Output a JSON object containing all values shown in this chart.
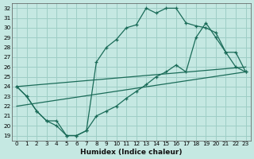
{
  "xlabel": "Humidex (Indice chaleur)",
  "xlim": [
    -0.5,
    23.5
  ],
  "ylim": [
    18.5,
    32.5
  ],
  "xticks": [
    0,
    1,
    2,
    3,
    4,
    5,
    6,
    7,
    8,
    9,
    10,
    11,
    12,
    13,
    14,
    15,
    16,
    17,
    18,
    19,
    20,
    21,
    22,
    23
  ],
  "yticks": [
    19,
    20,
    21,
    22,
    23,
    24,
    25,
    26,
    27,
    28,
    29,
    30,
    31,
    32
  ],
  "bg_color": "#c5e8e2",
  "grid_color": "#9ecec6",
  "line_color": "#1a6b58",
  "curve1_x": [
    0,
    1,
    2,
    3,
    4,
    5,
    6,
    7,
    8,
    9,
    10,
    11,
    12,
    13,
    14,
    15,
    16,
    17,
    18,
    19,
    20,
    21,
    22,
    23
  ],
  "curve1_y": [
    24,
    23,
    21.5,
    20.5,
    20.5,
    19,
    19,
    19.5,
    26.5,
    28,
    28.8,
    30,
    30.3,
    32,
    31.5,
    32,
    32,
    30.5,
    30.2,
    30,
    29.5,
    27.5,
    26,
    25.5
  ],
  "line2_x": [
    0,
    23
  ],
  "line2_y": [
    22,
    25.5
  ],
  "line3_x": [
    0,
    23
  ],
  "line3_y": [
    24,
    26
  ],
  "curve4_x": [
    0,
    1,
    2,
    3,
    4,
    5,
    6,
    7,
    8,
    9,
    10,
    11,
    12,
    13,
    14,
    15,
    16,
    17,
    18,
    19,
    20,
    21,
    22,
    23
  ],
  "curve4_y": [
    24,
    23,
    21.5,
    20.5,
    20,
    19,
    19,
    19.5,
    21,
    21.5,
    22,
    22.8,
    23.5,
    24.2,
    25,
    25.5,
    26.2,
    25.5,
    29,
    30.5,
    29,
    27.5,
    27.5,
    25.5
  ]
}
